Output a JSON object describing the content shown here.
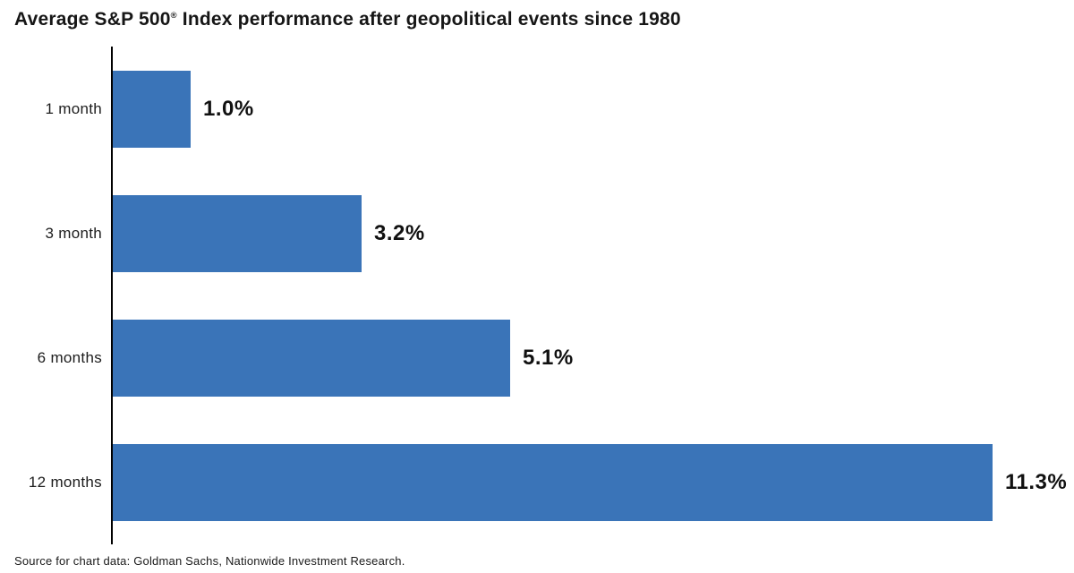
{
  "title": {
    "prefix": "Average S&P 500",
    "registered_mark": "®",
    "suffix": " Index performance after geopolitical events since 1980"
  },
  "chart_data": {
    "type": "bar",
    "orientation": "horizontal",
    "title": "Average S&P 500® Index performance after geopolitical events since 1980",
    "categories": [
      "1 month",
      "3 month",
      "6 months",
      "12 months"
    ],
    "values": [
      1.0,
      3.2,
      5.1,
      11.3
    ],
    "value_labels": [
      "1.0%",
      "3.2%",
      "5.1%",
      "11.3%"
    ],
    "xlabel": "",
    "ylabel": "",
    "xlim": [
      0,
      12
    ],
    "grid": false,
    "legend": null,
    "bar_color": "#3a74b8",
    "axis_color": "#000000",
    "label_color": "#111111"
  },
  "footer": {
    "source": "Source for chart data: Goldman Sachs, Nationwide Investment Research."
  }
}
